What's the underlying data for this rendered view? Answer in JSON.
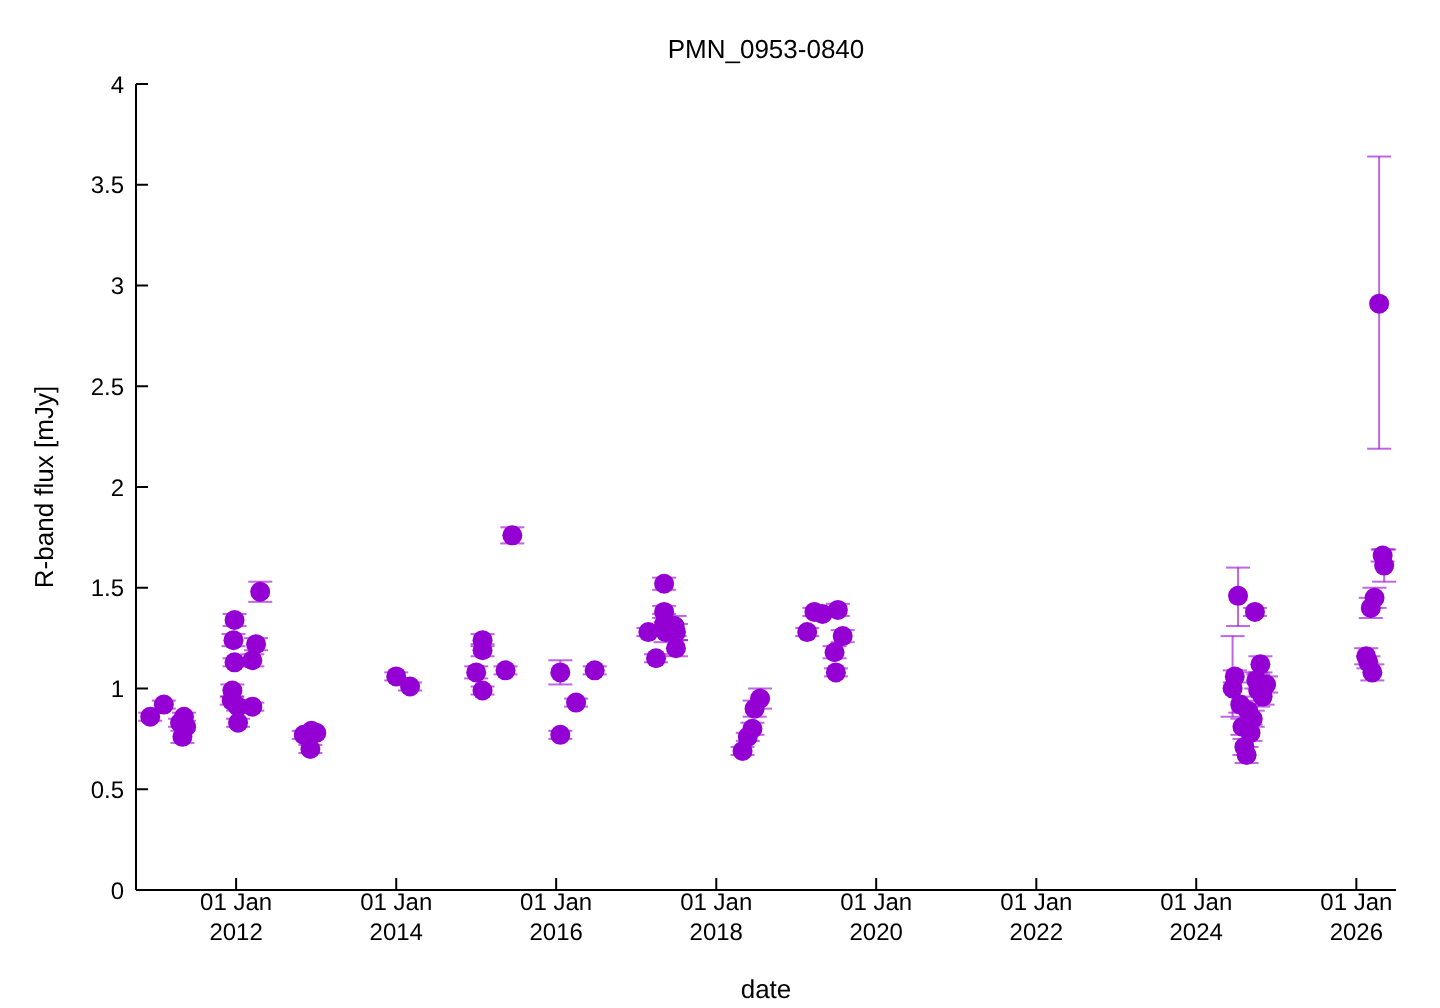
{
  "chart_data": {
    "type": "scatter",
    "title": "PMN_0953-0840",
    "xlabel": "date",
    "ylabel": "R-band flux [mJy]",
    "xlim": [
      "2010-10-01",
      "2026-07-01"
    ],
    "xticks": [
      {
        "value": "2012-01-01",
        "label": "01 Jan\n2012"
      },
      {
        "value": "2014-01-01",
        "label": "01 Jan\n2014"
      },
      {
        "value": "2016-01-01",
        "label": "01 Jan\n2016"
      },
      {
        "value": "2018-01-01",
        "label": "01 Jan\n2018"
      },
      {
        "value": "2020-01-01",
        "label": "01 Jan\n2020"
      },
      {
        "value": "2022-01-01",
        "label": "01 Jan\n2022"
      },
      {
        "value": "2024-01-01",
        "label": "01 Jan\n2024"
      },
      {
        "value": "2026-01-01",
        "label": "01 Jan\n2026"
      }
    ],
    "ylim": [
      0,
      4
    ],
    "yticks": [
      0,
      0.5,
      1,
      1.5,
      2,
      2.5,
      3,
      3.5,
      4
    ],
    "marker": "circle",
    "grid": false,
    "series": [
      {
        "color": "#9400d3",
        "x": [
          "2010-12-05",
          "2011-02-05",
          "2011-04-20",
          "2011-05-08",
          "2011-05-01",
          "2011-05-18",
          "2011-12-15",
          "2011-12-25",
          "2011-12-20",
          "2011-12-25",
          "2011-12-12",
          "2012-01-10",
          "2012-01-10",
          "2012-03-15",
          "2012-03-15",
          "2012-04-01",
          "2012-04-20",
          "2012-11-05",
          "2012-12-05",
          "2012-12-10",
          "2013-01-01",
          "2014-01-01",
          "2014-03-05",
          "2015-01-01",
          "2015-01-30",
          "2015-01-30",
          "2015-01-30",
          "2015-05-15",
          "2015-06-15",
          "2016-01-20",
          "2016-01-20",
          "2016-04-01",
          "2016-06-25",
          "2017-02-25",
          "2017-04-01",
          "2017-05-08",
          "2017-05-08",
          "2017-05-08",
          "2017-05-15",
          "2017-06-25",
          "2017-07-01",
          "2017-07-01",
          "2018-05-01",
          "2018-05-25",
          "2018-06-15",
          "2018-06-25",
          "2018-07-20",
          "2019-02-20",
          "2019-03-25",
          "2019-05-01",
          "2019-07-10",
          "2019-06-25",
          "2019-07-01",
          "2019-08-01",
          "2024-06-15",
          "2024-06-25",
          "2024-07-10",
          "2024-07-20",
          "2024-07-30",
          "2024-08-08",
          "2024-08-18",
          "2024-08-25",
          "2024-09-05",
          "2024-09-15",
          "2024-09-25",
          "2024-10-01",
          "2024-10-10",
          "2024-10-20",
          "2024-10-30",
          "2024-11-15",
          "2024-11-25",
          "2026-02-15",
          "2026-02-25",
          "2026-03-08",
          "2026-03-15",
          "2026-03-25",
          "2026-04-15",
          "2026-05-01",
          "2026-05-08"
        ],
        "values": [
          0.86,
          0.92,
          0.83,
          0.86,
          0.76,
          0.81,
          0.99,
          1.34,
          1.24,
          1.13,
          0.94,
          0.91,
          0.83,
          0.91,
          1.14,
          1.22,
          1.48,
          0.77,
          0.7,
          0.79,
          0.78,
          1.06,
          1.01,
          1.08,
          1.24,
          1.19,
          0.99,
          1.09,
          1.76,
          1.08,
          0.77,
          0.93,
          1.09,
          1.28,
          1.15,
          1.52,
          1.38,
          1.32,
          1.28,
          1.31,
          1.2,
          1.28,
          0.69,
          0.76,
          0.8,
          0.9,
          0.95,
          1.28,
          1.38,
          1.37,
          1.39,
          1.18,
          1.08,
          1.26,
          1.0,
          1.06,
          1.46,
          0.92,
          0.81,
          0.71,
          0.67,
          0.89,
          0.78,
          0.85,
          1.38,
          1.04,
          0.99,
          1.12,
          0.96,
          1.02,
          null,
          1.16,
          1.13,
          1.4,
          1.08,
          1.45,
          2.91,
          1.66,
          1.61
        ],
        "errors": [
          0.02,
          0.02,
          0.02,
          0.02,
          0.03,
          null,
          0.03,
          0.03,
          0.03,
          0.02,
          0.02,
          0.02,
          0.02,
          0.02,
          0.03,
          0.03,
          0.05,
          0.02,
          0.02,
          0.02,
          null,
          0.02,
          0.02,
          0.03,
          0.03,
          0.03,
          0.02,
          0.02,
          0.04,
          0.06,
          0.02,
          0.02,
          0.02,
          0.02,
          0.02,
          0.03,
          0.03,
          0.05,
          0.05,
          0.05,
          0.04,
          0.04,
          0.02,
          0.02,
          0.03,
          0.04,
          0.05,
          0.02,
          0.02,
          null,
          0.03,
          0.03,
          0.02,
          0.03,
          [
            0.86,
            1.26
          ],
          0.03,
          [
            1.31,
            1.6
          ],
          0.04,
          0.04,
          0.04,
          0.04,
          0.05,
          0.04,
          0.04,
          0.02,
          0.04,
          0.08,
          0.04,
          0.04,
          0.04,
          null,
          0.04,
          0.03,
          0.05,
          0.04,
          0.05,
          [
            2.19,
            3.64
          ],
          0.03,
          0.08
        ]
      }
    ]
  }
}
